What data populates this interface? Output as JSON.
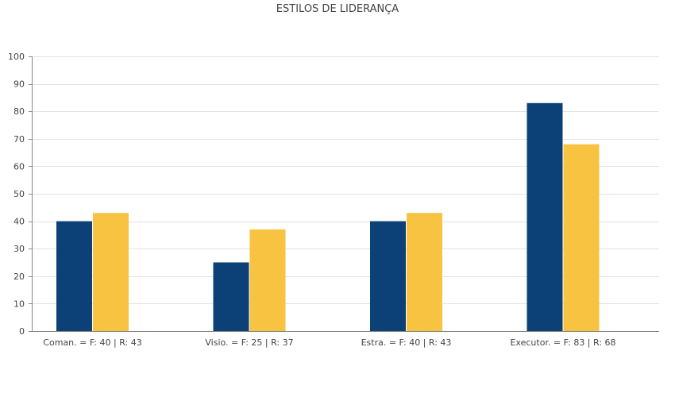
{
  "chart_data": {
    "type": "bar",
    "title": "ESTILOS DE LIDERANÇA",
    "xlabel": "",
    "ylabel": "",
    "ylim": [
      0,
      100
    ],
    "yticks": [
      0,
      10,
      20,
      30,
      40,
      50,
      60,
      70,
      80,
      90,
      100
    ],
    "grid": true,
    "legend": "none",
    "categories": [
      "Coman. = F: 40 | R: 43",
      "Visio. = F: 25 | R: 37",
      "Estra. = F: 40 | R: 43",
      "Executor. = F: 83 | R: 68"
    ],
    "series": [
      {
        "color": "#0b4176",
        "values": [
          40,
          25,
          40,
          83
        ]
      },
      {
        "color": "#f7c340",
        "values": [
          43,
          37,
          43,
          68
        ]
      }
    ]
  }
}
